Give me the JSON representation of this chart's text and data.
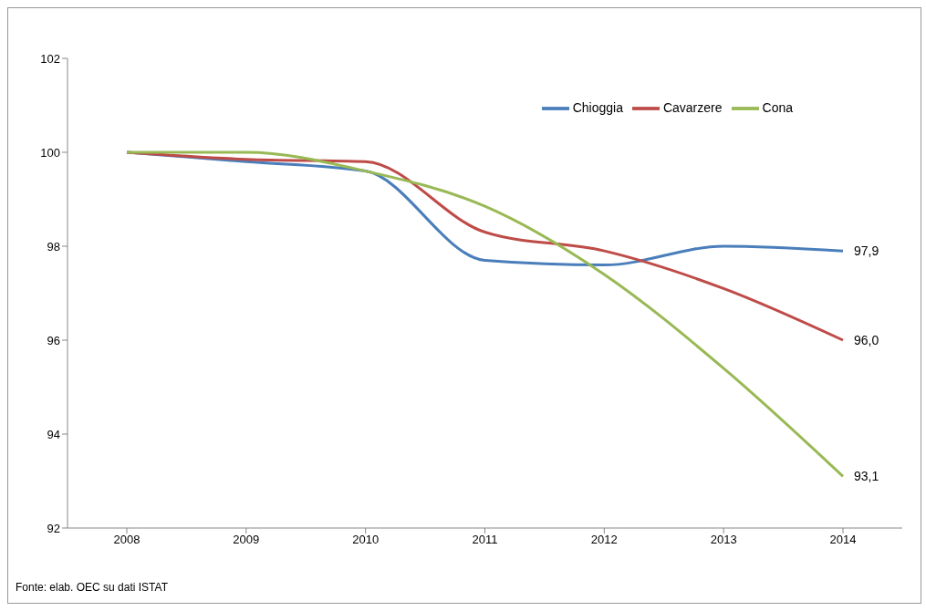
{
  "chart_data": {
    "type": "line",
    "categories": [
      "2008",
      "2009",
      "2010",
      "2011",
      "2012",
      "2013",
      "2014"
    ],
    "series": [
      {
        "name": "Chioggia",
        "color": "#4a7ebb",
        "values": [
          100,
          99.8,
          99.6,
          97.7,
          97.6,
          98.0,
          97.9
        ],
        "value_labels": [
          null,
          null,
          null,
          null,
          null,
          null,
          "97,9"
        ]
      },
      {
        "name": "Cavarzere",
        "color": "#be4b48",
        "values": [
          100,
          99.85,
          99.8,
          98.3,
          97.9,
          97.1,
          96.0
        ],
        "value_labels": [
          null,
          null,
          null,
          null,
          null,
          null,
          "96,0"
        ]
      },
      {
        "name": "Cona",
        "color": "#98b954",
        "values": [
          100,
          100.0,
          99.6,
          98.85,
          97.4,
          95.4,
          93.1
        ],
        "value_labels": [
          null,
          null,
          null,
          null,
          null,
          null,
          "93,1"
        ]
      }
    ],
    "ylim": [
      92,
      102
    ],
    "yticks": [
      92,
      94,
      96,
      98,
      100,
      102
    ],
    "grid": false,
    "legend": "top right",
    "marker": "none",
    "annotations": [
      "Fonte: elab. OEC su dati ISTAT"
    ]
  }
}
